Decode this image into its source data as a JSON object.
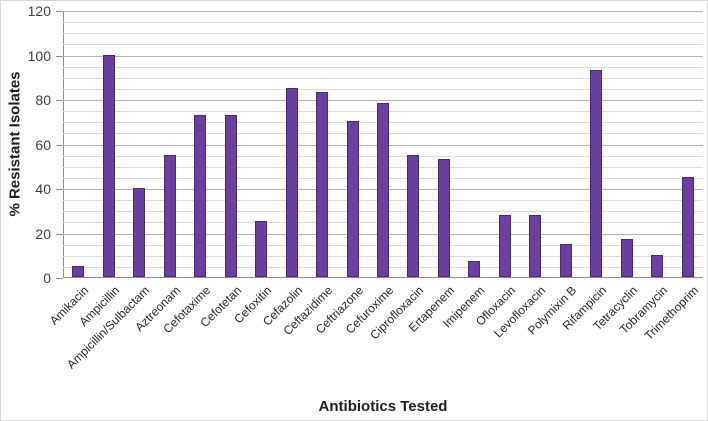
{
  "chart_data": {
    "type": "bar",
    "title": "",
    "xlabel": "Antibiotics Tested",
    "ylabel": "% Resistant Isolates",
    "categories": [
      "Amikacin",
      "Ampicillin",
      "Ampicillin/Sulbactam",
      "Aztreonam",
      "Cefotaxime",
      "Cefotetan",
      "Cefoxitin",
      "Cefazolin",
      "Ceftazidime",
      "Ceftriazone",
      "Cefuroxime",
      "Ciprofloxacin",
      "Ertapenem",
      "Imipenem",
      "Ofloxacin",
      "Levofloxacin",
      "Polymixin B",
      "Rifampicin",
      "Tetracyclin",
      "Tobramycin",
      "Trimethoprim"
    ],
    "values": [
      5,
      100,
      40,
      55,
      73,
      73,
      25,
      85,
      83,
      70,
      78,
      55,
      53,
      7,
      28,
      28,
      15,
      93,
      17,
      10,
      45
    ],
    "ylim": [
      0,
      120
    ],
    "y_major_step": 20,
    "y_minor_step": 5,
    "y_tick_labels": [
      "0",
      "20",
      "40",
      "60",
      "80",
      "100",
      "120"
    ],
    "grid": "horizontal",
    "legend": "none",
    "colors": {
      "bar_fill": "#6B3FA2",
      "bar_edge": "#4B2973",
      "grid_minor": "#dcdcdc",
      "grid_major": "#b4b4b4",
      "axis_line": "#8f8f8f",
      "tick_text": "#3f3f3f",
      "title_text": "#1f1f1f"
    }
  }
}
